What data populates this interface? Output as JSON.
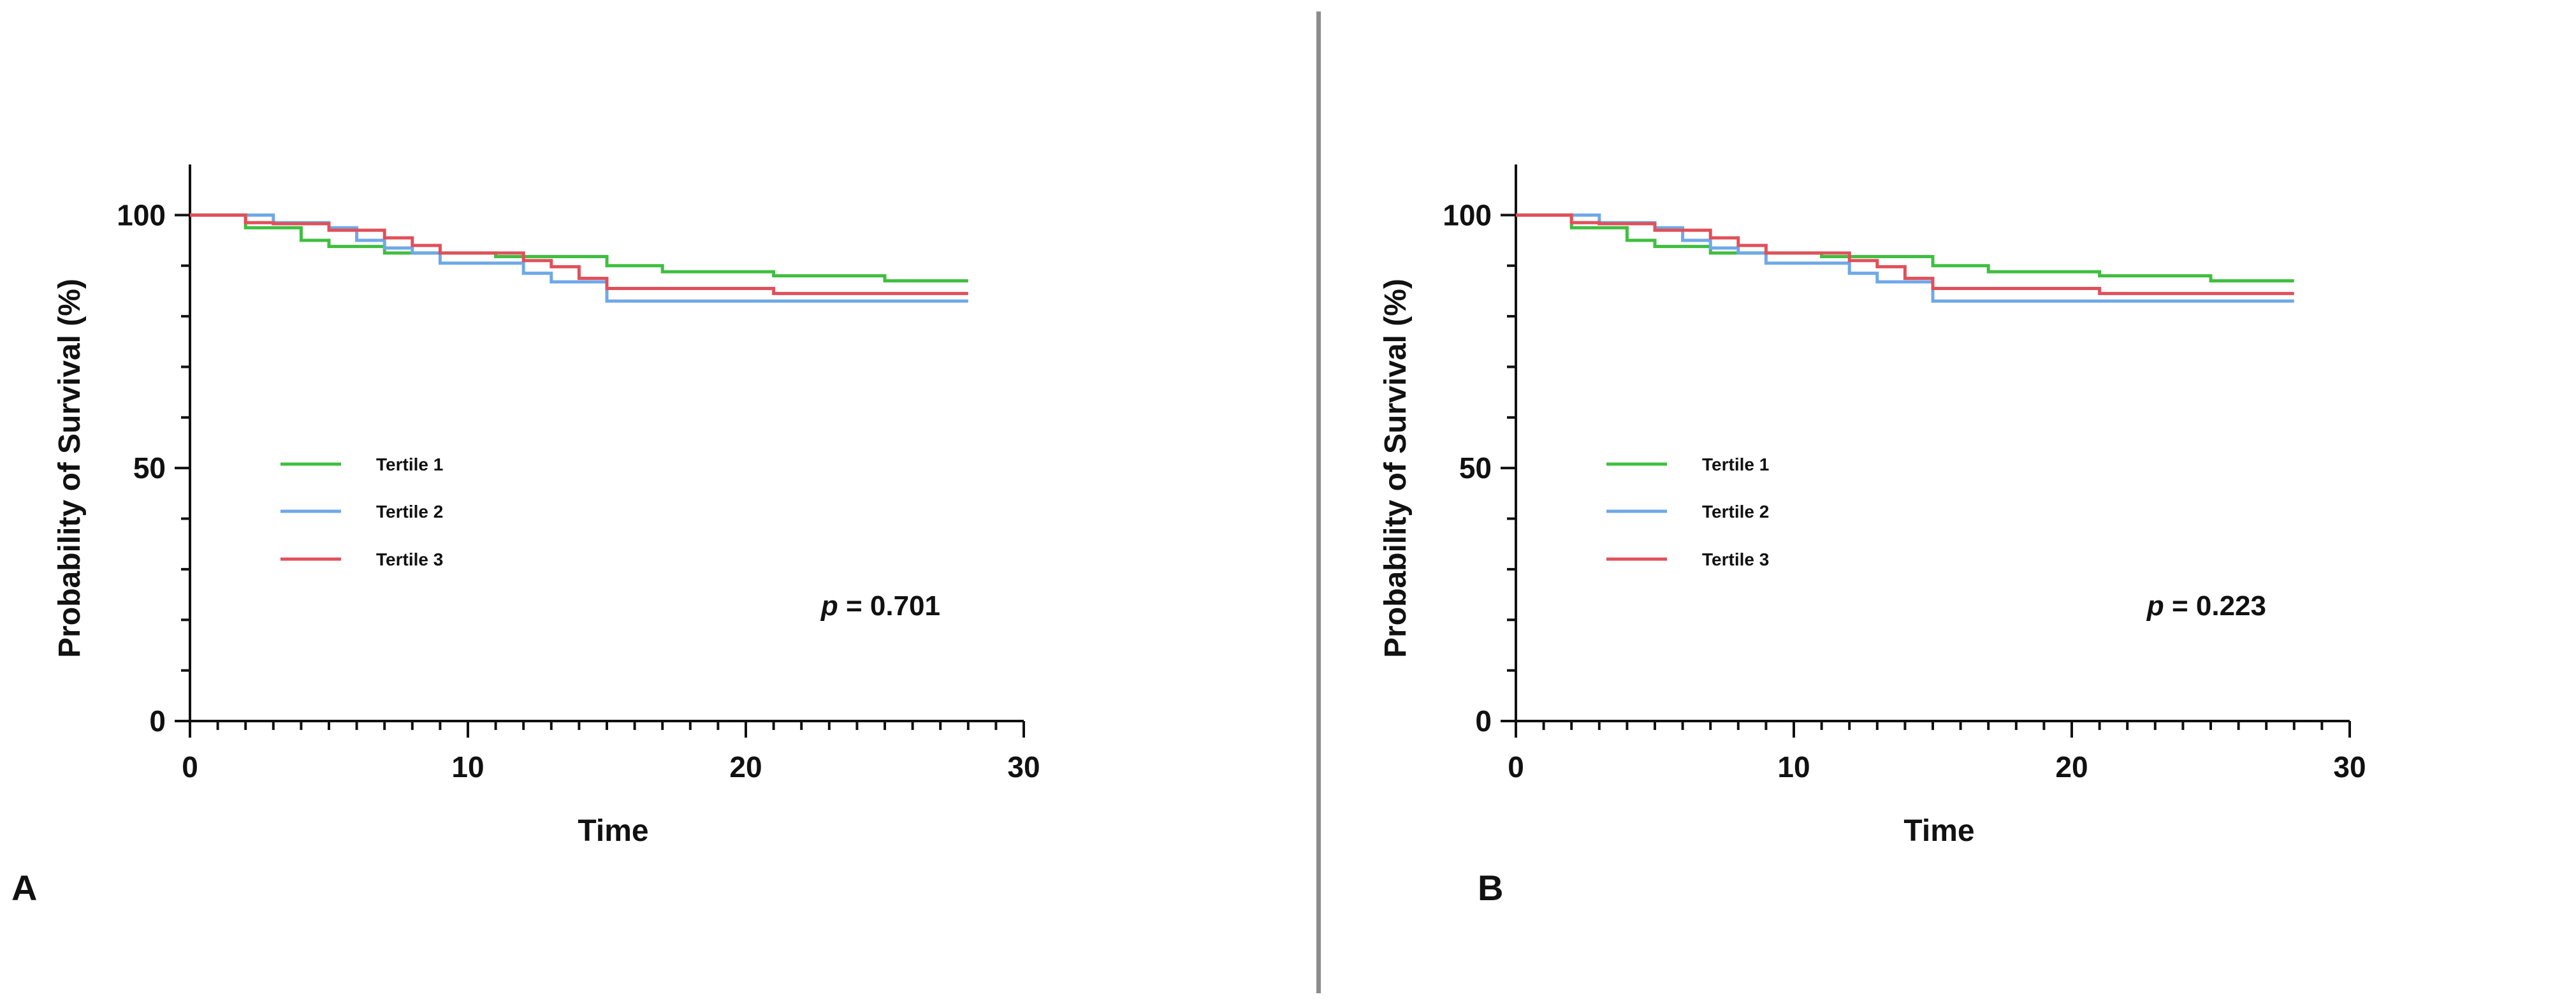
{
  "colors": {
    "tertile_1": "#3fbf3f",
    "tertile_2": "#6fa8e8",
    "tertile_3": "#e0505a",
    "axis": "#111111",
    "divider": "#8c8c8c"
  },
  "panels": [
    {
      "letter": "A"
    },
    {
      "letter": "B"
    }
  ],
  "chart_data": [
    {
      "type": "line",
      "step": true,
      "panel": "A",
      "xlabel": "Time",
      "ylabel": "Probability of Survival (%)",
      "xlim": [
        0,
        30
      ],
      "ylim": [
        0,
        110
      ],
      "x_ticks": [
        0,
        10,
        20,
        30
      ],
      "y_ticks": [
        0,
        50,
        100
      ],
      "grid": false,
      "legend_position": "middle-left",
      "annotation": {
        "italic": "p",
        "text": " = 0.701"
      },
      "series": [
        {
          "name": "Tertile 1",
          "color": "#3fbf3f",
          "x": [
            0,
            2,
            4,
            5,
            7,
            9,
            11,
            15,
            17,
            21,
            25,
            28
          ],
          "y": [
            100,
            97.5,
            95,
            93.8,
            92.5,
            92.5,
            91.8,
            90,
            88.8,
            88,
            87,
            87
          ]
        },
        {
          "name": "Tertile 2",
          "color": "#6fa8e8",
          "x": [
            0,
            3,
            5,
            6,
            7,
            8,
            9,
            12,
            13,
            15,
            28
          ],
          "y": [
            100,
            98.5,
            97.5,
            95,
            93.5,
            92.5,
            90.5,
            88.5,
            86.8,
            83,
            83
          ]
        },
        {
          "name": "Tertile 3",
          "color": "#e0505a",
          "x": [
            0,
            2,
            3,
            5,
            7,
            8,
            9,
            12,
            13,
            14,
            15,
            21,
            28
          ],
          "y": [
            100,
            98.5,
            98.3,
            97,
            95.5,
            94,
            92.5,
            91,
            89.8,
            87.5,
            85.5,
            84.5,
            84.5
          ]
        }
      ]
    },
    {
      "type": "line",
      "step": true,
      "panel": "B",
      "xlabel": "Time",
      "ylabel": "Probability of Survival (%)",
      "xlim": [
        0,
        30
      ],
      "ylim": [
        0,
        110
      ],
      "x_ticks": [
        0,
        10,
        20,
        30
      ],
      "y_ticks": [
        0,
        50,
        100
      ],
      "grid": false,
      "legend_position": "middle-left",
      "annotation": {
        "italic": "p",
        "text": " = 0.223"
      },
      "series": [
        {
          "name": "Tertile 1",
          "color": "#3fbf3f",
          "x": [
            0,
            2,
            4,
            5,
            7,
            9,
            11,
            15,
            17,
            21,
            25,
            28
          ],
          "y": [
            100,
            97.5,
            95,
            93.8,
            92.5,
            92.5,
            91.8,
            90,
            88.8,
            88,
            87,
            87
          ]
        },
        {
          "name": "Tertile 2",
          "color": "#6fa8e8",
          "x": [
            0,
            3,
            5,
            6,
            7,
            8,
            9,
            12,
            13,
            15,
            28
          ],
          "y": [
            100,
            98.5,
            97.5,
            95,
            93.5,
            92.5,
            90.5,
            88.5,
            86.8,
            83,
            83
          ]
        },
        {
          "name": "Tertile 3",
          "color": "#e0505a",
          "x": [
            0,
            2,
            3,
            5,
            7,
            8,
            9,
            12,
            13,
            14,
            15,
            21,
            28
          ],
          "y": [
            100,
            98.5,
            98.3,
            97,
            95.5,
            94,
            92.5,
            91,
            89.8,
            87.5,
            85.5,
            84.5,
            84.5
          ]
        }
      ]
    }
  ]
}
